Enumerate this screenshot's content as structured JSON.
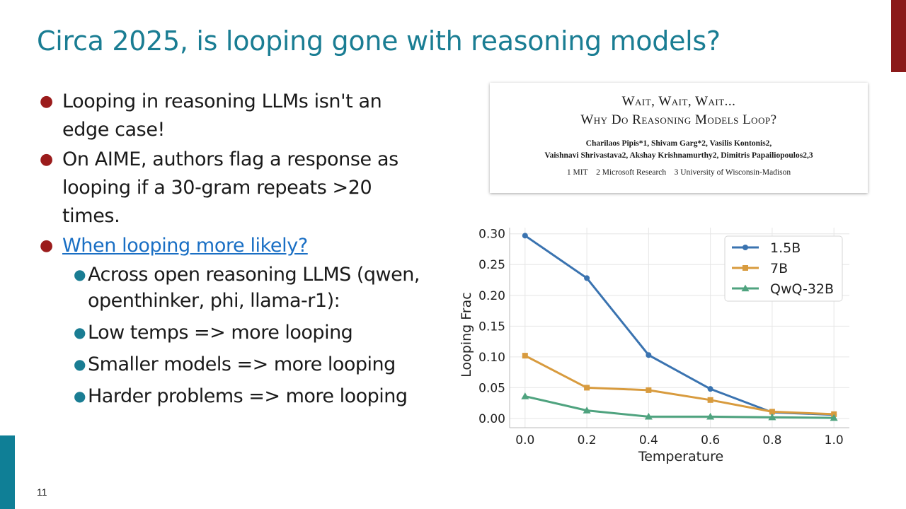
{
  "slide": {
    "title": "Circa 2025, is looping gone with reasoning models?",
    "number": "11",
    "colors": {
      "title": "#1a7d93",
      "accent_red": "#8b1a1a",
      "accent_teal": "#0f7f96",
      "link": "#1a6fc4"
    }
  },
  "bullets": [
    {
      "text": "Looping in reasoning LLMs isn't an edge case!"
    },
    {
      "text": "On AIME, authors flag a response as looping if a 30-gram repeats >20 times."
    },
    {
      "text": "When looping more likely?",
      "is_link": true,
      "sub": [
        "Across open reasoning LLMS (qwen, openthinker, phi, llama-r1):",
        "Low temps => more looping",
        "Smaller models => more looping",
        "Harder problems  => more looping"
      ]
    }
  ],
  "paper": {
    "title_line1": "Wait, Wait, Wait...",
    "title_line2": "Why Do Reasoning Models Loop?",
    "authors_line1": "Charilaos Pipis*1,  Shivam Garg*2, Vasilis Kontonis2,",
    "authors_line2": "Vaishnavi Shrivastava2, Akshay Krishnamurthy2, Dimitris Papailiopoulos2,3",
    "affil_1": "1 MIT",
    "affil_2": "2 Microsoft Research",
    "affil_3": "3 University of Wisconsin-Madison"
  },
  "chart_data": {
    "type": "line",
    "xlabel": "Temperature",
    "ylabel": "Looping Frac",
    "x": [
      0.0,
      0.2,
      0.4,
      0.6,
      0.8,
      1.0
    ],
    "xticks": [
      "0.0",
      "0.2",
      "0.4",
      "0.6",
      "0.8",
      "1.0"
    ],
    "yticks": [
      "0.00",
      "0.05",
      "0.10",
      "0.15",
      "0.20",
      "0.25",
      "0.30"
    ],
    "xlim": [
      -0.05,
      1.05
    ],
    "ylim": [
      -0.015,
      0.31
    ],
    "grid": true,
    "legend_position": "top-right",
    "series": [
      {
        "name": "1.5B",
        "values": [
          0.297,
          0.228,
          0.103,
          0.048,
          0.01,
          0.006
        ],
        "color": "#3a73b0",
        "marker": "circle"
      },
      {
        "name": "7B",
        "values": [
          0.102,
          0.05,
          0.046,
          0.03,
          0.011,
          0.007
        ],
        "color": "#d89b3e",
        "marker": "square"
      },
      {
        "name": "QwQ-32B",
        "values": [
          0.036,
          0.013,
          0.003,
          0.003,
          0.002,
          0.001
        ],
        "color": "#4fa37f",
        "marker": "triangle"
      }
    ]
  }
}
